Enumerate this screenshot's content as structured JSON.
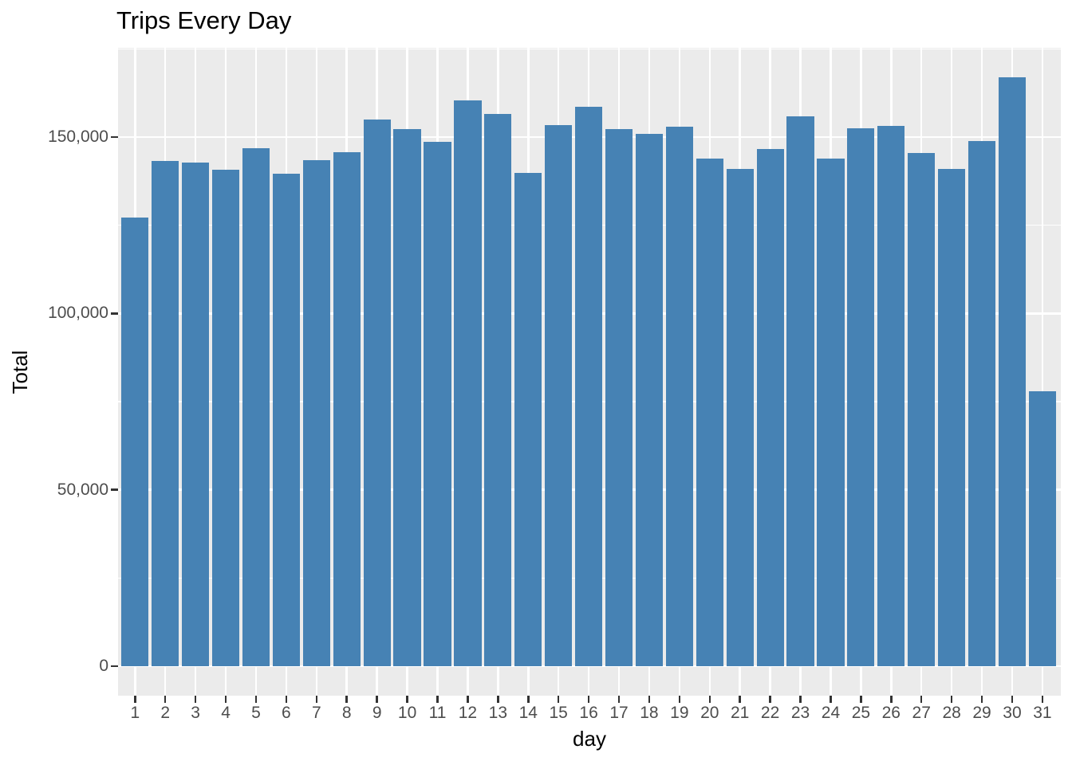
{
  "title": "Trips Every Day",
  "chart_data": {
    "type": "bar",
    "title": "Trips Every Day",
    "xlabel": "day",
    "ylabel": "Total",
    "categories": [
      1,
      2,
      3,
      4,
      5,
      6,
      7,
      8,
      9,
      10,
      11,
      12,
      13,
      14,
      15,
      16,
      17,
      18,
      19,
      20,
      21,
      22,
      23,
      24,
      25,
      26,
      27,
      28,
      29,
      30,
      31
    ],
    "values": [
      127200,
      143200,
      142700,
      140700,
      146800,
      139700,
      143400,
      145700,
      154900,
      152300,
      148700,
      160300,
      156500,
      139800,
      153500,
      158500,
      152300,
      151000,
      152900,
      143800,
      140900,
      146600,
      155900,
      143800,
      152500,
      153200,
      145500,
      140900,
      148900,
      166900,
      78000
    ],
    "ylim": [
      0,
      175000
    ],
    "yticks": [
      0,
      50000,
      100000,
      150000
    ],
    "ytick_labels": [
      "0",
      "50,000",
      "100,000",
      "150,000"
    ],
    "minor_yticks": [
      25000,
      75000,
      125000,
      175000
    ],
    "grid": true,
    "legend": false,
    "bar_color": "#4682B4",
    "panel_bg": "#EBEBEB",
    "grid_color": "#FFFFFF",
    "tick_mark_color": "#333333",
    "tick_label_color": "#4D4D4D"
  }
}
